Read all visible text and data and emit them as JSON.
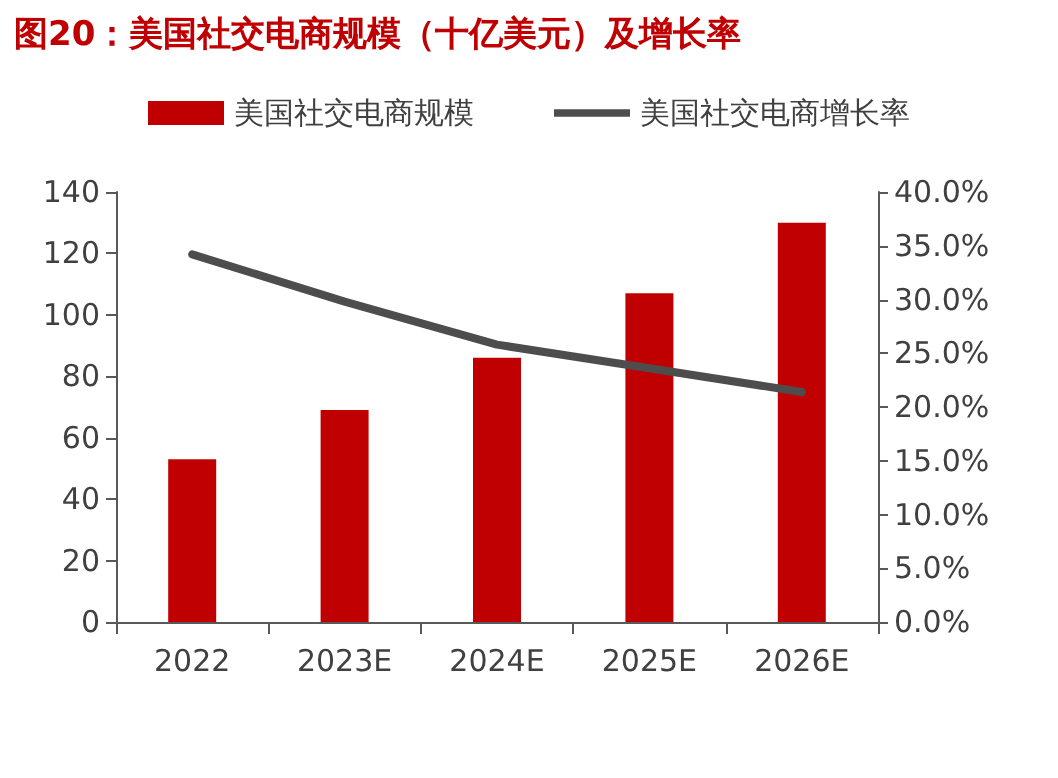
{
  "chart_data": {
    "type": "bar",
    "title": "图20：美国社交电商规模（十亿美元）及增长率",
    "categories": [
      "2022",
      "2023E",
      "2024E",
      "2025E",
      "2026E"
    ],
    "series": [
      {
        "name": "美国社交电商规模",
        "color": "#c00000",
        "values": [
          53,
          69,
          86,
          107,
          130
        ]
      },
      {
        "name": "美国社交电商增长率",
        "type": "line",
        "axis": "y2",
        "color": "#4d4d4d",
        "values": [
          34.2,
          29.8,
          25.8,
          23.6,
          21.4
        ]
      }
    ],
    "ylim": [
      0,
      140
    ],
    "yticks": [
      0,
      20,
      40,
      60,
      80,
      100,
      120,
      140
    ],
    "y2lim": [
      0,
      40
    ],
    "y2ticks": [
      {
        "value": 0,
        "label": "0.0%"
      },
      {
        "value": 5,
        "label": "5.0%"
      },
      {
        "value": 10,
        "label": "10.0%"
      },
      {
        "value": 15,
        "label": "15.0%"
      },
      {
        "value": 20,
        "label": "20.0%"
      },
      {
        "value": 25,
        "label": "25.0%"
      },
      {
        "value": 30,
        "label": "30.0%"
      },
      {
        "value": 35,
        "label": "35.0%"
      },
      {
        "value": 40,
        "label": "40.0%"
      }
    ],
    "grid": false,
    "legend": "top",
    "marker": "none",
    "line_style": "solid"
  }
}
